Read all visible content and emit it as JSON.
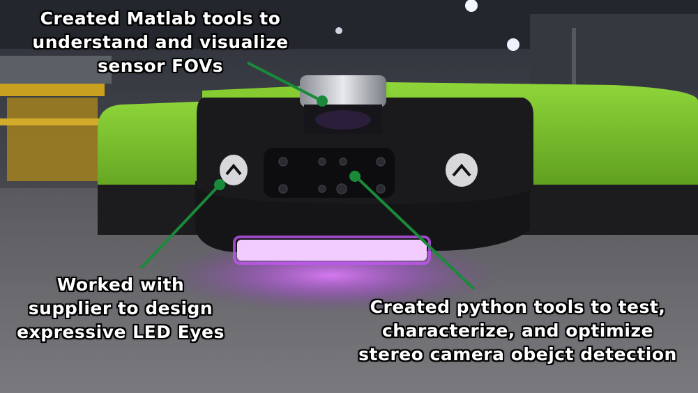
{
  "captions": {
    "matlab": {
      "lines": [
        "Created Matlab tools to",
        "understand and visualize",
        "sensor FOVs"
      ]
    },
    "led": {
      "lines": [
        "Worked with",
        "supplier to design",
        "expressive LED Eyes"
      ]
    },
    "python": {
      "lines": [
        "Created python tools to test,",
        "characterize, and optimize",
        "stereo camera obejct detection"
      ]
    }
  },
  "colors": {
    "callout_line": "#1a8a3a",
    "robot_body": "#7ac52a",
    "led_glow": "#d45cf5",
    "floor": "#6e6e72"
  }
}
